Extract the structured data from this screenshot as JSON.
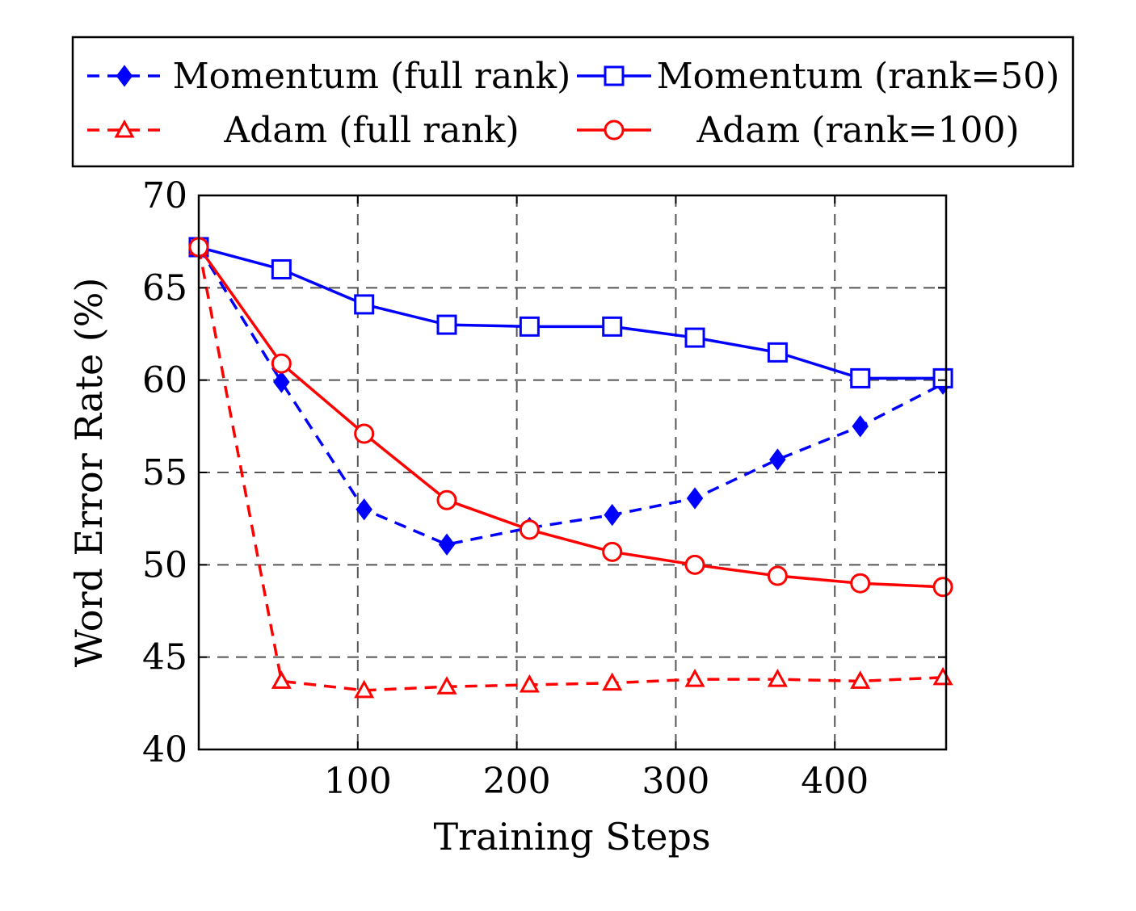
{
  "chart_data": {
    "type": "line",
    "title": "",
    "xlabel": "Training Steps",
    "ylabel": "Word Error Rate (%)",
    "xlim": [
      0,
      470
    ],
    "ylim": [
      40,
      70
    ],
    "xticks": [
      100,
      200,
      300,
      400
    ],
    "yticks": [
      40,
      45,
      50,
      55,
      60,
      65,
      70
    ],
    "grid": true,
    "legend_position": "top",
    "x": [
      0,
      52,
      104,
      156,
      208,
      260,
      312,
      364,
      416,
      468
    ],
    "series": [
      {
        "name": "Momentum (full rank)",
        "color": "#0000ff",
        "line_style": "dashed",
        "marker": "diamond-filled",
        "values": [
          67.2,
          59.9,
          53.0,
          51.1,
          52.0,
          52.7,
          53.6,
          55.7,
          57.5,
          59.8
        ]
      },
      {
        "name": "Momentum (rank=50)",
        "color": "#0000ff",
        "line_style": "solid",
        "marker": "square-open",
        "values": [
          67.2,
          66.0,
          64.1,
          63.0,
          62.9,
          62.9,
          62.3,
          61.5,
          60.1,
          60.1
        ]
      },
      {
        "name": "Adam (full rank)",
        "color": "#ff0000",
        "line_style": "dashed",
        "marker": "triangle-open",
        "values": [
          67.2,
          43.7,
          43.2,
          43.4,
          43.5,
          43.6,
          43.8,
          43.8,
          43.7,
          43.9
        ]
      },
      {
        "name": "Adam (rank=100)",
        "color": "#ff0000",
        "line_style": "solid",
        "marker": "circle-open",
        "values": [
          67.2,
          60.9,
          57.1,
          53.5,
          51.9,
          50.7,
          50.0,
          49.4,
          49.0,
          48.8
        ]
      }
    ]
  }
}
